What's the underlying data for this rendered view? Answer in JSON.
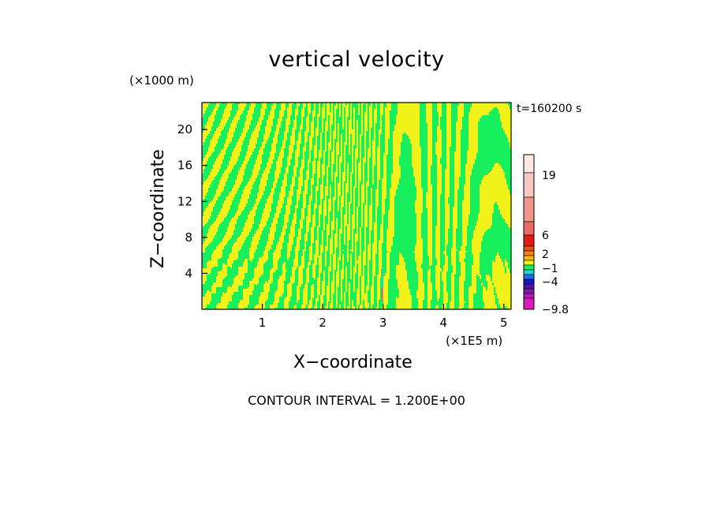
{
  "chart_data": {
    "type": "heatmap",
    "title": "vertical velocity",
    "xlabel": "X−coordinate",
    "ylabel": "Z−coordinate",
    "x_unit": "(×1E5 m)",
    "y_unit": "(×1000 m)",
    "time_label": "t=160200 s",
    "contour_interval": "CONTOUR INTERVAL = 1.200E+00",
    "xlim": [
      0,
      5.12
    ],
    "ylim": [
      0,
      23
    ],
    "x_ticks": [
      1,
      2,
      3,
      4,
      5
    ],
    "y_ticks": [
      4,
      8,
      12,
      16,
      20
    ],
    "field_description_colors": {
      "negative_small": "#17ef5c",
      "positive_small": "#f2f21b"
    },
    "colorbar": {
      "labels": [
        {
          "value": 19,
          "text": "19"
        },
        {
          "value": 6,
          "text": "6"
        },
        {
          "value": 2,
          "text": "2"
        },
        {
          "value": -1,
          "text": "−1"
        },
        {
          "value": -4,
          "text": "−4"
        },
        {
          "value": -9.8,
          "text": "−9.8"
        }
      ],
      "levels": [
        {
          "value": 22,
          "color": "#fde8e6"
        },
        {
          "value": 19,
          "color": "#f8c6c0"
        },
        {
          "value": 14,
          "color": "#f0948c"
        },
        {
          "value": 9,
          "color": "#e86a62"
        },
        {
          "value": 6,
          "color": "#e81818"
        },
        {
          "value": 4.8,
          "color": "#f05018"
        },
        {
          "value": 3.6,
          "color": "#f88010"
        },
        {
          "value": 2.4,
          "color": "#f8b810"
        },
        {
          "value": 1.2,
          "color": "#f2f21b"
        },
        {
          "value": 0,
          "color": "#17ef5c"
        },
        {
          "value": -1.2,
          "color": "#18d8d0"
        },
        {
          "value": -2.4,
          "color": "#1870f0"
        },
        {
          "value": -3.6,
          "color": "#1818c8"
        },
        {
          "value": -4.8,
          "color": "#5018a8"
        },
        {
          "value": -6,
          "color": "#8818b0"
        },
        {
          "value": -7.2,
          "color": "#b818c0"
        },
        {
          "value": -8.4,
          "color": "#e018c0"
        }
      ]
    }
  }
}
